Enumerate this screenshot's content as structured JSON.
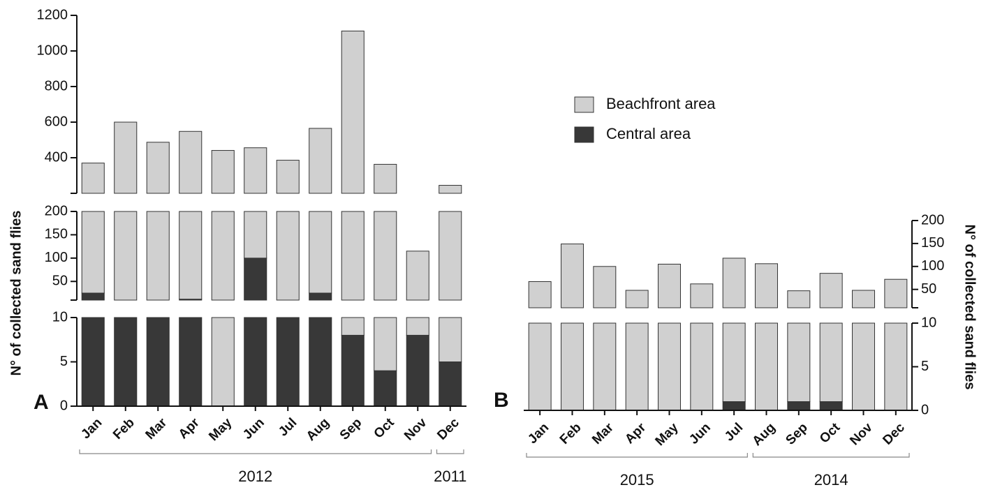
{
  "chart_data": [
    {
      "type": "bar",
      "stacked": true,
      "panel_label": "A",
      "ylabel": "N° of collected sand flies",
      "yaxis_side": "left",
      "categories": [
        "Jan",
        "Feb",
        "Mar",
        "Apr",
        "May",
        "Jun",
        "Jul",
        "Aug",
        "Sep",
        "Oct",
        "Nov",
        "Dec"
      ],
      "series": [
        {
          "name": "Central area",
          "color": "#383838",
          "values": [
            25,
            10,
            10,
            12,
            0,
            100,
            10,
            25,
            8,
            4,
            8,
            5
          ]
        },
        {
          "name": "Beachfront area",
          "color": "#d0d0d0",
          "values": [
            345,
            590,
            477,
            536,
            441,
            356,
            376,
            540,
            1104,
            359,
            107,
            240
          ]
        }
      ],
      "y_segments": [
        {
          "ylim": [
            0,
            10
          ],
          "yticks": [
            0,
            5,
            10
          ]
        },
        {
          "ylim": [
            10,
            200
          ],
          "yticks": [
            50,
            100,
            150,
            200
          ]
        },
        {
          "ylim": [
            200,
            1200
          ],
          "yticks": [
            400,
            600,
            800,
            1000,
            1200
          ]
        }
      ],
      "groups": [
        {
          "label": "2012",
          "first": 0,
          "last": 10
        },
        {
          "label": "2011",
          "first": 11,
          "last": 11
        }
      ],
      "legend": "top-right"
    },
    {
      "type": "bar",
      "stacked": true,
      "panel_label": "B",
      "ylabel": "N° of collected sand flies",
      "yaxis_side": "right",
      "categories": [
        "Jan",
        "Feb",
        "Mar",
        "Apr",
        "May",
        "Jun",
        "Jul",
        "Aug",
        "Sep",
        "Oct",
        "Nov",
        "Dec"
      ],
      "series": [
        {
          "color": "#383838",
          "values": [
            0,
            0,
            0,
            0,
            0,
            0,
            1,
            0,
            1,
            1,
            0,
            0
          ]
        },
        {
          "color": "#d0d0d0",
          "values": [
            67,
            149,
            100,
            48,
            105,
            62,
            117,
            106,
            46,
            84,
            48,
            72
          ]
        }
      ],
      "y_segments": [
        {
          "ylim": [
            0,
            10
          ],
          "yticks": [
            0,
            5,
            10
          ]
        },
        {
          "ylim": [
            10,
            200
          ],
          "yticks": [
            50,
            100,
            150,
            200
          ]
        }
      ],
      "groups": [
        {
          "label": "2015",
          "first": 0,
          "last": 6
        },
        {
          "label": "2014",
          "first": 7,
          "last": 11
        }
      ]
    }
  ]
}
